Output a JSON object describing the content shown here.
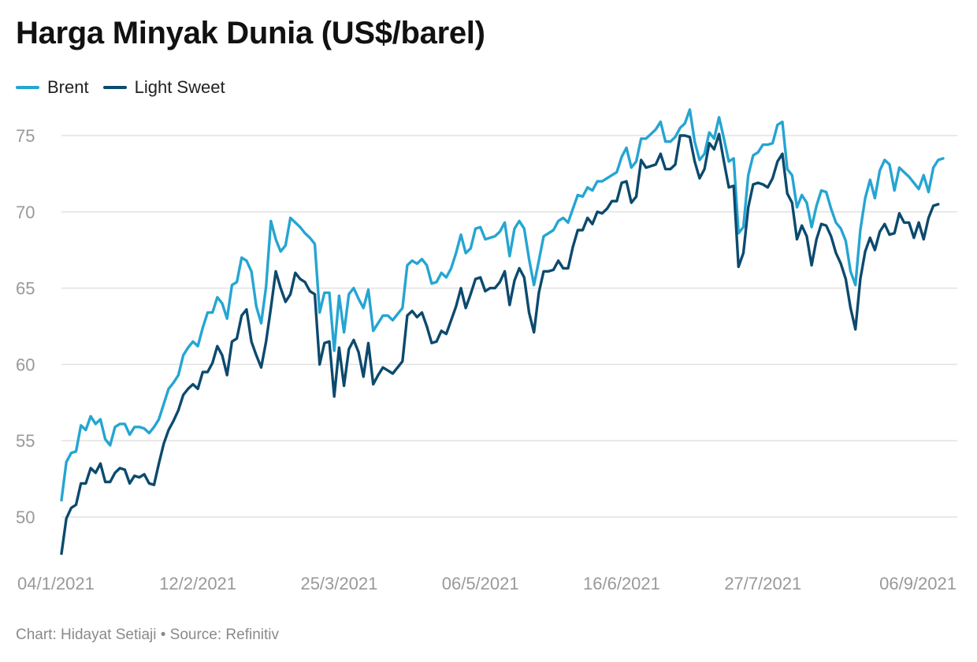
{
  "chart_data": {
    "type": "line",
    "title": "Harga Minyak Dunia (US$/barel)",
    "ylim": [
      47,
      77
    ],
    "y_ticks": [
      50,
      55,
      60,
      65,
      70,
      75
    ],
    "x_tick_labels": [
      "04/1/2021",
      "12/2/2021",
      "25/3/2021",
      "06/5/2021",
      "16/6/2021",
      "27/7/2021",
      "06/9/2021"
    ],
    "x_tick_positions": [
      0,
      28,
      57,
      86,
      115,
      144,
      173
    ],
    "grid": true,
    "legend": "top-left",
    "series": [
      {
        "name": "Brent",
        "color": "#25a5d2",
        "values": [
          51.1,
          53.6,
          54.2,
          54.3,
          56.0,
          55.7,
          56.6,
          56.1,
          56.4,
          55.1,
          54.7,
          55.9,
          56.1,
          56.1,
          55.4,
          55.9,
          55.9,
          55.8,
          55.5,
          55.9,
          56.4,
          57.4,
          58.4,
          58.8,
          59.3,
          60.6,
          61.1,
          61.5,
          61.2,
          62.4,
          63.4,
          63.4,
          64.4,
          64.0,
          63.0,
          65.2,
          65.4,
          67.0,
          66.8,
          66.1,
          63.8,
          62.7,
          65.1,
          69.4,
          68.2,
          67.4,
          67.8,
          69.6,
          69.3,
          69.0,
          68.6,
          68.3,
          67.9,
          63.4,
          64.7,
          64.7,
          60.9,
          64.5,
          62.1,
          64.6,
          65.0,
          64.3,
          63.7,
          64.9,
          62.2,
          62.7,
          63.2,
          63.2,
          62.9,
          63.3,
          63.7,
          66.5,
          66.8,
          66.6,
          66.9,
          66.5,
          65.3,
          65.4,
          66.0,
          65.7,
          66.3,
          67.3,
          68.5,
          67.3,
          67.6,
          68.9,
          69.0,
          68.2,
          68.3,
          68.4,
          68.7,
          69.3,
          67.1,
          68.9,
          69.4,
          68.9,
          66.9,
          65.2,
          66.8,
          68.4,
          68.6,
          68.8,
          69.4,
          69.6,
          69.3,
          70.2,
          71.1,
          71.0,
          71.6,
          71.4,
          72.0,
          72.0,
          72.2,
          72.4,
          72.6,
          73.6,
          74.2,
          72.9,
          73.3,
          74.8,
          74.8,
          75.1,
          75.4,
          75.9,
          74.6,
          74.6,
          74.9,
          75.5,
          75.8,
          76.7,
          74.6,
          73.4,
          73.8,
          75.2,
          74.8,
          76.2,
          74.8,
          73.3,
          73.5,
          68.6,
          69.0,
          72.4,
          73.7,
          73.9,
          74.4,
          74.4,
          74.5,
          75.7,
          75.9,
          72.8,
          72.4,
          70.3,
          71.1,
          70.6,
          69.0,
          70.4,
          71.4,
          71.3,
          70.2,
          69.3,
          68.9,
          68.1,
          66.1,
          65.2,
          68.8,
          70.9,
          72.1,
          70.9,
          72.7,
          73.4,
          73.1,
          71.4,
          72.9,
          72.6,
          72.3,
          71.9,
          71.5,
          72.4,
          71.3,
          72.9,
          73.4,
          73.5
        ]
      },
      {
        "name": "Light Sweet",
        "color": "#0c4a6e",
        "values": [
          47.6,
          49.9,
          50.6,
          50.8,
          52.2,
          52.2,
          53.2,
          52.9,
          53.5,
          52.3,
          52.3,
          52.9,
          53.2,
          53.1,
          52.2,
          52.7,
          52.6,
          52.8,
          52.2,
          52.1,
          53.5,
          54.8,
          55.7,
          56.3,
          57.0,
          58.0,
          58.4,
          58.7,
          58.4,
          59.5,
          59.5,
          60.1,
          61.2,
          60.6,
          59.3,
          61.5,
          61.7,
          63.2,
          63.6,
          61.5,
          60.6,
          59.8,
          61.5,
          63.7,
          66.1,
          65.0,
          64.1,
          64.6,
          66.0,
          65.6,
          65.4,
          64.8,
          64.6,
          60.0,
          61.4,
          61.5,
          57.9,
          61.1,
          58.6,
          61.0,
          61.6,
          60.8,
          59.2,
          61.4,
          58.7,
          59.3,
          59.8,
          59.6,
          59.4,
          59.8,
          60.2,
          63.2,
          63.5,
          63.1,
          63.4,
          62.5,
          61.4,
          61.5,
          62.2,
          62.0,
          62.9,
          63.8,
          65.0,
          63.7,
          64.6,
          65.6,
          65.7,
          64.8,
          65.0,
          65.0,
          65.4,
          66.1,
          63.9,
          65.5,
          66.3,
          65.7,
          63.4,
          62.1,
          64.7,
          66.1,
          66.1,
          66.2,
          66.8,
          66.3,
          66.3,
          67.7,
          68.8,
          68.8,
          69.6,
          69.2,
          70.0,
          69.9,
          70.2,
          70.7,
          70.7,
          71.9,
          72.0,
          70.6,
          71.0,
          73.4,
          72.9,
          73.0,
          73.1,
          73.8,
          72.8,
          72.8,
          73.1,
          75.0,
          75.0,
          74.9,
          73.3,
          72.2,
          72.8,
          74.5,
          74.1,
          75.1,
          73.3,
          71.6,
          71.7,
          66.4,
          67.3,
          70.3,
          71.8,
          71.9,
          71.8,
          71.6,
          72.2,
          73.3,
          73.8,
          71.2,
          70.6,
          68.2,
          69.1,
          68.4,
          66.5,
          68.2,
          69.2,
          69.1,
          68.4,
          67.3,
          66.6,
          65.6,
          63.7,
          62.3,
          65.6,
          67.4,
          68.3,
          67.5,
          68.7,
          69.2,
          68.5,
          68.6,
          69.9,
          69.3,
          69.3,
          68.3,
          69.3,
          68.2,
          69.6,
          70.4,
          70.5
        ]
      }
    ]
  },
  "footer": {
    "text": "Chart: Hidayat Setiaji • Source: Refinitiv"
  }
}
